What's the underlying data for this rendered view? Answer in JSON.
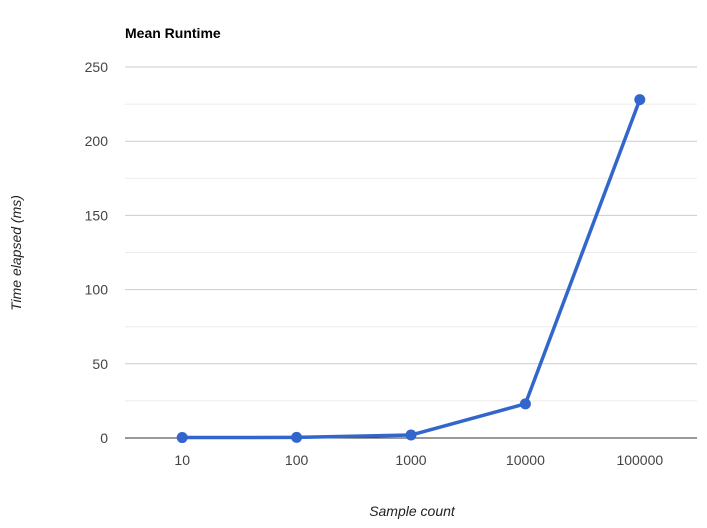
{
  "chart_data": {
    "type": "line",
    "title": "Mean Runtime",
    "xlabel": "Sample count",
    "ylabel": "Time elapsed (ms)",
    "categories": [
      "10",
      "100",
      "1000",
      "10000",
      "100000"
    ],
    "series": [
      {
        "values": [
          0.3,
          0.4,
          2,
          23,
          228
        ]
      }
    ],
    "ylim": [
      0,
      250
    ],
    "yticks": [
      0,
      50,
      100,
      150,
      200,
      250
    ],
    "grid": true,
    "minor_grid": true,
    "legend": "none",
    "colors": {
      "series": "#3366cc"
    }
  }
}
